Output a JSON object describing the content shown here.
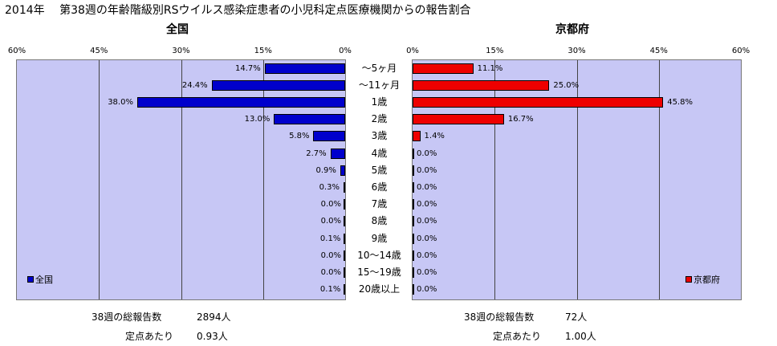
{
  "title": "2014年　 第38週の年齢階級別RSウイルス感染症患者の小児科定点医療機関からの報告割合",
  "chart_data": {
    "type": "bar",
    "orientation": "horizontal",
    "categories": [
      "～5ヶ月",
      "～11ヶ月",
      "1歳",
      "2歳",
      "3歳",
      "4歳",
      "5歳",
      "6歳",
      "7歳",
      "8歳",
      "9歳",
      "10～14歳",
      "15～19歳",
      "20歳以上"
    ],
    "panels": [
      {
        "title": "全国",
        "series_name": "全国",
        "values": [
          14.7,
          24.4,
          38.0,
          13.0,
          5.8,
          2.7,
          0.9,
          0.3,
          0.0,
          0.0,
          0.1,
          0.0,
          0.0,
          0.1
        ],
        "value_labels": [
          "14.7%",
          "24.4%",
          "38.0%",
          "13.0%",
          "5.8%",
          "2.7%",
          "0.9%",
          "0.3%",
          "0.0%",
          "0.0%",
          "0.1%",
          "0.0%",
          "0.0%",
          "0.1%"
        ],
        "xlim": [
          0,
          60
        ],
        "ticks": [
          "60%",
          "45%",
          "30%",
          "15%",
          "0%"
        ],
        "direction": "right-to-left",
        "color": "#0000cc",
        "legend_position": "bottom-left"
      },
      {
        "title": "京都府",
        "series_name": "京都府",
        "values": [
          11.1,
          25.0,
          45.8,
          16.7,
          1.4,
          0.0,
          0.0,
          0.0,
          0.0,
          0.0,
          0.0,
          0.0,
          0.0,
          0.0
        ],
        "value_labels": [
          "11.1%",
          "25.0%",
          "45.8%",
          "16.7%",
          "1.4%",
          "0.0%",
          "0.0%",
          "0.0%",
          "0.0%",
          "0.0%",
          "0.0%",
          "0.0%",
          "0.0%",
          "0.0%"
        ],
        "xlim": [
          0,
          60
        ],
        "ticks": [
          "0%",
          "15%",
          "30%",
          "45%",
          "60%"
        ],
        "direction": "left-to-right",
        "color": "#ee0000",
        "legend_position": "bottom-right"
      }
    ],
    "grid": true
  },
  "footer": {
    "national_total_label": "38週の総報告数",
    "national_total_value": "2894人",
    "national_per_label": "定点あたり",
    "national_per_value": "0.93人",
    "kyoto_total_label": "38週の総報告数",
    "kyoto_total_value": "72人",
    "kyoto_per_label": "定点あたり",
    "kyoto_per_value": "1.00人"
  }
}
